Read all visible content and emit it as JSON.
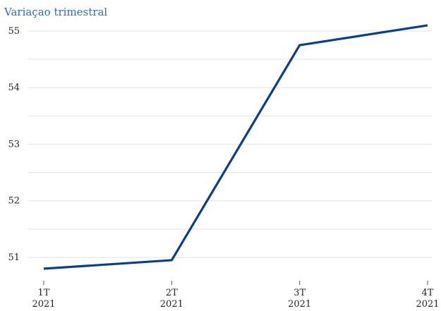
{
  "chart_data": {
    "type": "line",
    "title": "",
    "subtitle": "Variaçao trimestral",
    "xlabel": "",
    "ylabel": "",
    "categories": [
      [
        "1T",
        "2021"
      ],
      [
        "2T",
        "2021"
      ],
      [
        "3T",
        "2021"
      ],
      [
        "4T",
        "2021"
      ]
    ],
    "series": [
      {
        "values": [
          50.8,
          50.95,
          54.75,
          55.1
        ]
      }
    ],
    "ylim": [
      50.5,
      55.05
    ],
    "yticks": [
      51,
      52,
      53,
      54,
      55
    ],
    "grid": true,
    "legend": "none",
    "colors": {
      "line": "#0b3f86",
      "subtitle": "#2b6cb0"
    }
  }
}
